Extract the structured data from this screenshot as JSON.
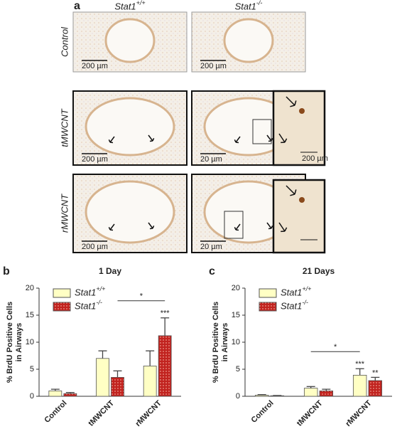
{
  "panel_a": {
    "label": "a",
    "columns": [
      "Stat1+/+",
      "Stat1-/-"
    ],
    "rows": [
      "Control",
      "tMWCNT",
      "rMWCNT"
    ],
    "scale_labels": [
      "200 µm",
      "200 µm",
      "200 µm",
      "20 µm",
      "200 µm",
      "200 µm",
      "20 µm"
    ]
  },
  "chart_data": [
    {
      "type": "bar",
      "panel": "b",
      "title": "1 Day",
      "y_label": [
        "% BrdU Positive Cells",
        "in Airways"
      ],
      "categories": [
        "Control",
        "tMWCNT",
        "rMWCNT"
      ],
      "series": [
        {
          "name": "Stat1+/+",
          "color": "#ffffc4",
          "values": [
            1.0,
            7.0,
            5.6
          ],
          "errors": [
            0.3,
            1.4,
            2.8
          ]
        },
        {
          "name": "Stat1-/-",
          "color": "#c1231f",
          "values": [
            0.5,
            3.5,
            11.2
          ],
          "errors": [
            0.2,
            1.2,
            3.3
          ]
        }
      ],
      "ylim": [
        0,
        20
      ],
      "yticks": [
        0,
        5,
        10,
        15,
        20
      ],
      "annotations": [
        {
          "text": "*",
          "between": [
            "tMWCNT",
            "rMWCNT"
          ],
          "series": "Stat1-/-"
        },
        {
          "text": "***",
          "category": "rMWCNT",
          "series": "Stat1-/-"
        }
      ]
    },
    {
      "type": "bar",
      "panel": "c",
      "title": "21 Days",
      "y_label": [
        "% BrdU Positive Cells",
        "in Airways"
      ],
      "categories": [
        "Control",
        "tMWCNT",
        "rMWCNT"
      ],
      "series": [
        {
          "name": "Stat1+/+",
          "color": "#ffffc4",
          "values": [
            0.2,
            1.5,
            3.9
          ],
          "errors": [
            0.1,
            0.3,
            1.2
          ]
        },
        {
          "name": "Stat1-/-",
          "color": "#c1231f",
          "values": [
            0.1,
            1.0,
            2.9
          ],
          "errors": [
            0.05,
            0.3,
            0.6
          ]
        }
      ],
      "ylim": [
        0,
        20
      ],
      "yticks": [
        0,
        5,
        10,
        15,
        20
      ],
      "annotations": [
        {
          "text": "*",
          "between": [
            "tMWCNT",
            "rMWCNT"
          ],
          "series": "Stat1+/+"
        },
        {
          "text": "***",
          "category": "rMWCNT",
          "series": "Stat1+/+"
        },
        {
          "text": "**",
          "category": "rMWCNT",
          "series": "Stat1-/-"
        }
      ]
    }
  ]
}
